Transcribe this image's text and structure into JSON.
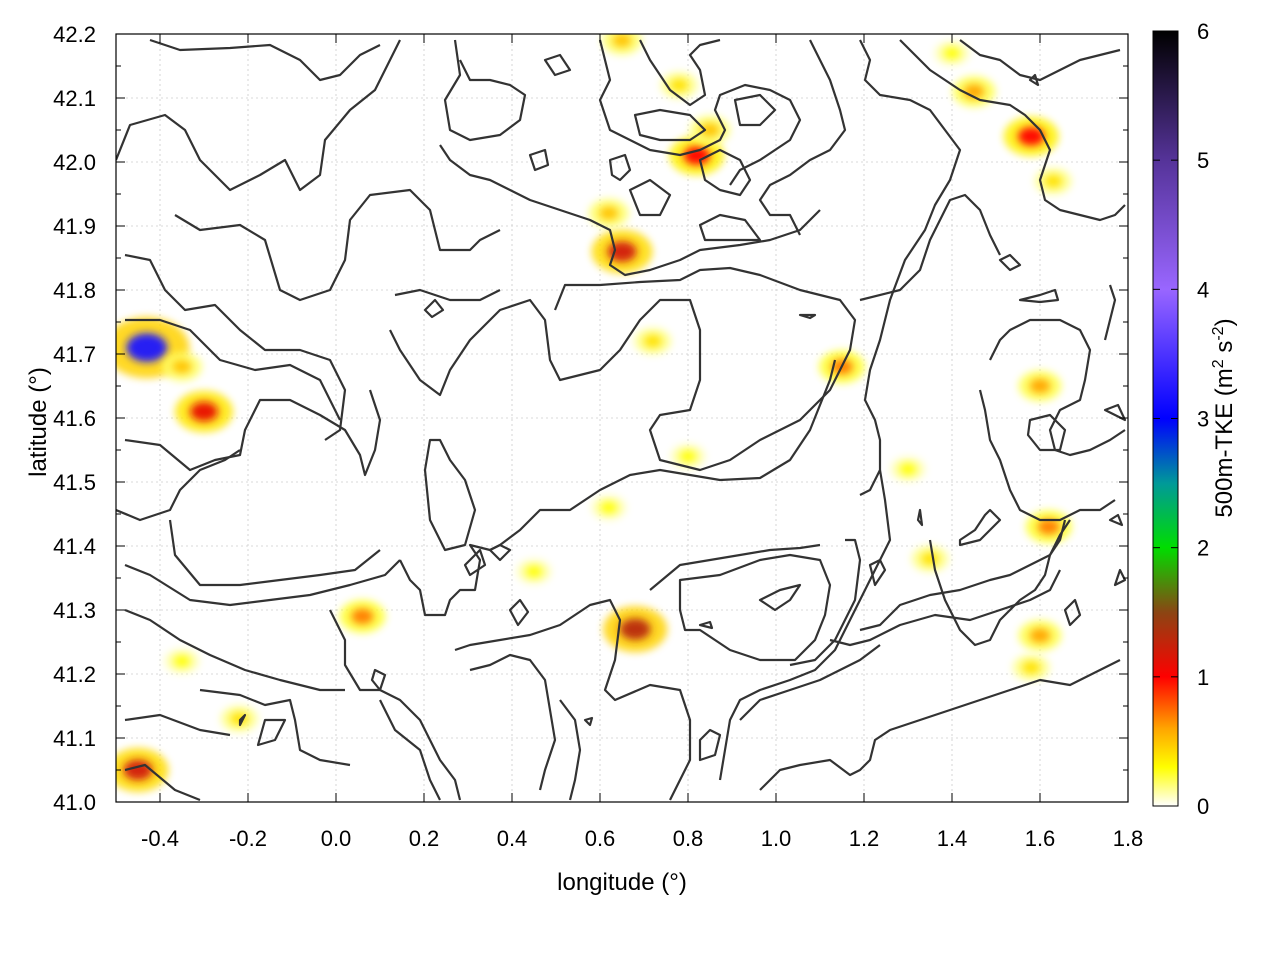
{
  "chart_data": {
    "type": "heatmap",
    "title": "",
    "xlabel": "longitude (°)",
    "ylabel": "latitude (°)",
    "xlim": [
      -0.5,
      1.8
    ],
    "ylim": [
      41.0,
      42.2
    ],
    "xticks": [
      "-0.4",
      "-0.2",
      "0.0",
      "0.2",
      "0.4",
      "0.6",
      "0.8",
      "1.0",
      "1.2",
      "1.4",
      "1.6",
      "1.8"
    ],
    "yticks": [
      "41.0",
      "41.1",
      "41.2",
      "41.3",
      "41.4",
      "41.5",
      "41.6",
      "41.7",
      "41.8",
      "41.9",
      "42.0",
      "42.1",
      "42.2"
    ],
    "grid": true,
    "colorbar": {
      "label": "500m-TKE (m² s⁻²)",
      "label_main": "500m-TKE (m",
      "label_sup1": "2",
      "label_mid": " s",
      "label_sup2": "-2",
      "label_end": ")",
      "range": [
        0,
        6
      ],
      "ticks": [
        "0",
        "1",
        "2",
        "3",
        "4",
        "5",
        "6"
      ],
      "stops": [
        {
          "v": 0.0,
          "color": "#ffffff"
        },
        {
          "v": 0.3,
          "color": "#ffff00"
        },
        {
          "v": 0.6,
          "color": "#ffa500"
        },
        {
          "v": 1.0,
          "color": "#ff0000"
        },
        {
          "v": 1.5,
          "color": "#8b4513"
        },
        {
          "v": 2.0,
          "color": "#00dd00"
        },
        {
          "v": 2.5,
          "color": "#009999"
        },
        {
          "v": 3.0,
          "color": "#0000ff"
        },
        {
          "v": 4.0,
          "color": "#9966ff"
        },
        {
          "v": 5.0,
          "color": "#553399"
        },
        {
          "v": 6.0,
          "color": "#000000"
        }
      ]
    },
    "hotspots": [
      {
        "lon": -0.43,
        "lat": 41.71,
        "value": 3.2
      },
      {
        "lon": -0.3,
        "lat": 41.61,
        "value": 1.1
      },
      {
        "lon": -0.35,
        "lat": 41.68,
        "value": 0.5
      },
      {
        "lon": -0.45,
        "lat": 41.05,
        "value": 1.2
      },
      {
        "lon": -0.22,
        "lat": 41.13,
        "value": 0.4
      },
      {
        "lon": 0.68,
        "lat": 41.27,
        "value": 1.3
      },
      {
        "lon": 0.65,
        "lat": 41.86,
        "value": 1.2
      },
      {
        "lon": 0.62,
        "lat": 41.92,
        "value": 0.5
      },
      {
        "lon": 0.82,
        "lat": 42.01,
        "value": 1.0
      },
      {
        "lon": 0.85,
        "lat": 42.05,
        "value": 0.5
      },
      {
        "lon": 0.06,
        "lat": 41.29,
        "value": 0.7
      },
      {
        "lon": 1.58,
        "lat": 42.04,
        "value": 1.0
      },
      {
        "lon": 1.63,
        "lat": 41.97,
        "value": 0.4
      },
      {
        "lon": 1.6,
        "lat": 41.26,
        "value": 0.6
      },
      {
        "lon": 1.58,
        "lat": 41.21,
        "value": 0.4
      },
      {
        "lon": 1.62,
        "lat": 41.43,
        "value": 0.7
      },
      {
        "lon": 1.6,
        "lat": 41.65,
        "value": 0.6
      },
      {
        "lon": 1.45,
        "lat": 42.11,
        "value": 0.6
      },
      {
        "lon": 1.15,
        "lat": 41.68,
        "value": 0.7
      },
      {
        "lon": 0.8,
        "lat": 41.54,
        "value": 0.3
      },
      {
        "lon": 0.62,
        "lat": 41.46,
        "value": 0.3
      },
      {
        "lon": 1.35,
        "lat": 41.38,
        "value": 0.4
      },
      {
        "lon": 1.3,
        "lat": 41.52,
        "value": 0.3
      },
      {
        "lon": 0.72,
        "lat": 41.72,
        "value": 0.4
      },
      {
        "lon": 0.45,
        "lat": 41.36,
        "value": 0.3
      },
      {
        "lon": 0.78,
        "lat": 42.12,
        "value": 0.4
      },
      {
        "lon": 0.65,
        "lat": 42.19,
        "value": 0.5
      },
      {
        "lon": -0.35,
        "lat": 41.22,
        "value": 0.3
      },
      {
        "lon": 1.4,
        "lat": 42.17,
        "value": 0.3
      }
    ]
  }
}
